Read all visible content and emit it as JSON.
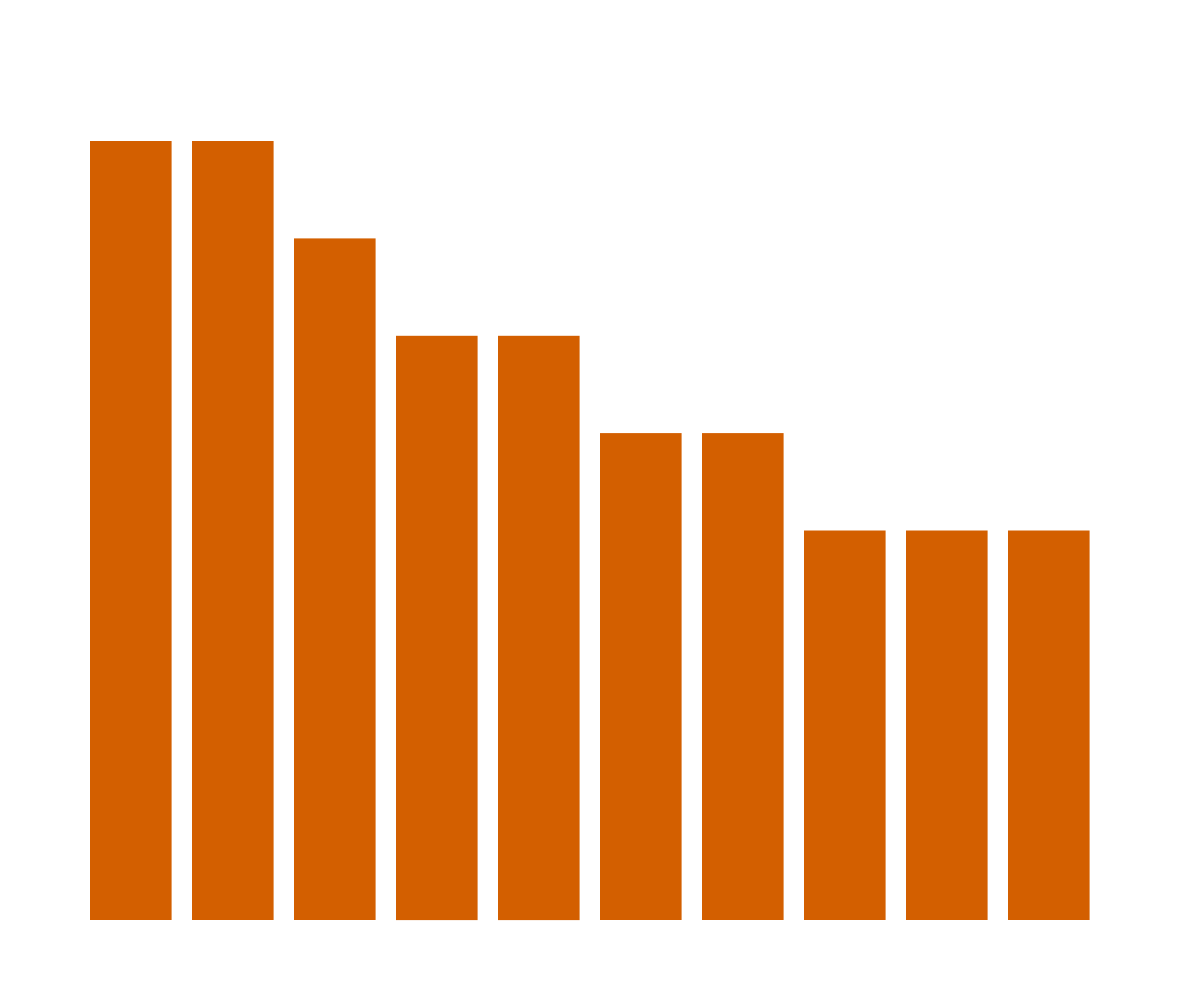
{
  "chart_data": {
    "type": "bar",
    "categories": [
      "",
      "",
      "",
      "",
      "",
      "",
      "",
      "",
      "",
      ""
    ],
    "values": [
      8,
      8,
      7,
      6,
      6,
      5,
      5,
      4,
      4,
      4
    ],
    "ylim": [
      0,
      8
    ],
    "grid": false,
    "axes_visible": false,
    "legend": "none",
    "bar_color": "#d35f00"
  }
}
